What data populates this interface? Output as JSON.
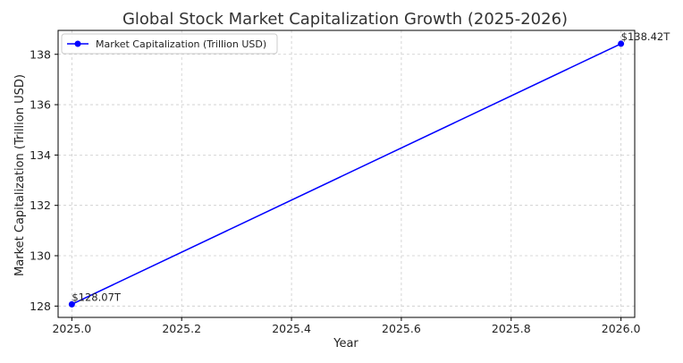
{
  "chart_data": {
    "type": "line",
    "title": "Global Stock Market Capitalization Growth (2025-2026)",
    "xlabel": "Year",
    "ylabel": "Market Capitalization (Trillion USD)",
    "xlim": [
      2024.975,
      2026.025
    ],
    "ylim": [
      127.55,
      138.95
    ],
    "xticks": [
      2025.0,
      2025.2,
      2025.4,
      2025.6,
      2025.8,
      2026.0
    ],
    "xtick_labels": [
      "2025.0",
      "2025.2",
      "2025.4",
      "2025.6",
      "2025.8",
      "2026.0"
    ],
    "yticks": [
      128,
      130,
      132,
      134,
      136,
      138
    ],
    "ytick_labels": [
      "128",
      "130",
      "132",
      "134",
      "136",
      "138"
    ],
    "grid": true,
    "legend_position": "top-left",
    "series": [
      {
        "name": "Market Capitalization (Trillion USD)",
        "color": "#0000ff",
        "marker": "circle",
        "x": [
          2025,
          2026
        ],
        "y": [
          128.07,
          138.42
        ],
        "labels": [
          "$128.07T",
          "$138.42T"
        ]
      }
    ]
  }
}
